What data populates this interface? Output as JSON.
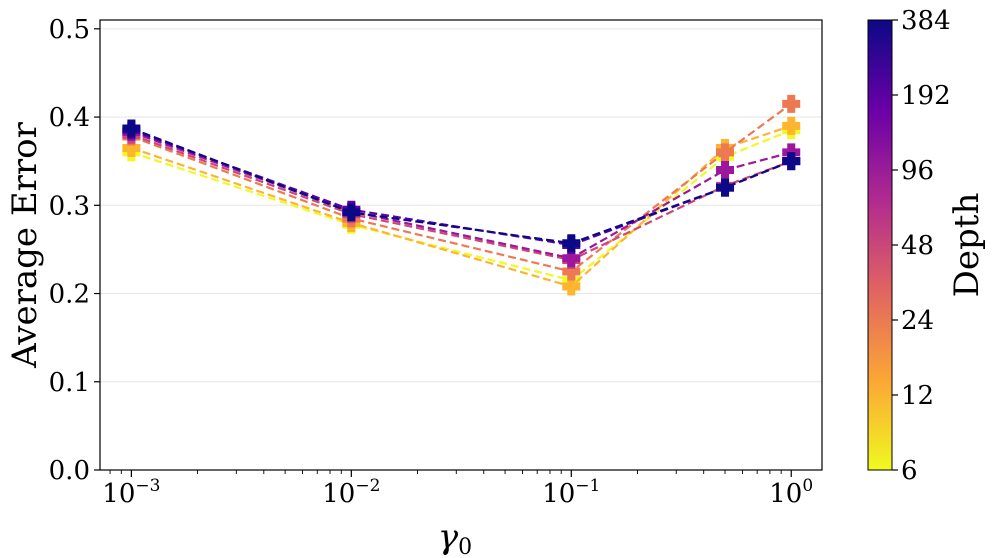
{
  "chart_data": {
    "type": "line",
    "title": "",
    "xlabel": "γ",
    "xlabel_subscript": "0",
    "ylabel": "Average Error",
    "x_scale": "log",
    "xlim": [
      0.00072,
      1.38
    ],
    "ylim": [
      0.0,
      0.51
    ],
    "grid": "horizontal",
    "x_ticks": [
      {
        "value": 0.001,
        "base": "10",
        "exp": "−3"
      },
      {
        "value": 0.01,
        "base": "10",
        "exp": "−2"
      },
      {
        "value": 0.1,
        "base": "10",
        "exp": "−1"
      },
      {
        "value": 1,
        "base": "10",
        "exp": "0"
      }
    ],
    "y_ticks": [
      {
        "value": 0.0,
        "label": "0.0"
      },
      {
        "value": 0.1,
        "label": "0.1"
      },
      {
        "value": 0.2,
        "label": "0.2"
      },
      {
        "value": 0.3,
        "label": "0.3"
      },
      {
        "value": 0.4,
        "label": "0.4"
      },
      {
        "value": 0.5,
        "label": "0.5"
      }
    ],
    "marker": "plus",
    "line_style": "dashed",
    "x": [
      0.001,
      0.01,
      0.1,
      0.5,
      1
    ],
    "series": [
      {
        "name": "6",
        "depth": 6,
        "color": "#f0f921",
        "values": [
          0.36,
          0.278,
          0.215,
          0.355,
          0.385
        ]
      },
      {
        "name": "12",
        "depth": 12,
        "color": "#fdb42f",
        "values": [
          0.365,
          0.28,
          0.208,
          0.365,
          0.39
        ]
      },
      {
        "name": "24",
        "depth": 24,
        "color": "#ed7953",
        "values": [
          0.378,
          0.285,
          0.225,
          0.36,
          0.415
        ]
      },
      {
        "name": "48",
        "depth": 48,
        "color": "#cc4778",
        "values": [
          0.38,
          0.29,
          0.238,
          0.322,
          0.35
        ]
      },
      {
        "name": "96",
        "depth": 96,
        "color": "#9c179e",
        "values": [
          0.383,
          0.293,
          0.24,
          0.34,
          0.36
        ]
      },
      {
        "name": "192",
        "depth": 192,
        "color": "#5c01a6",
        "values": [
          0.385,
          0.295,
          0.255,
          0.32,
          0.35
        ]
      },
      {
        "name": "384",
        "depth": 384,
        "color": "#0d0887",
        "values": [
          0.387,
          0.292,
          0.257,
          0.32,
          0.35
        ]
      }
    ],
    "colorbar": {
      "label": "Depth",
      "colormap": "plasma",
      "ticks": [
        "6",
        "12",
        "24",
        "48",
        "96",
        "192",
        "384"
      ],
      "stops": [
        "#f0f921",
        "#fca636",
        "#e16462",
        "#b12a90",
        "#6a00a8",
        "#0d0887"
      ]
    }
  }
}
